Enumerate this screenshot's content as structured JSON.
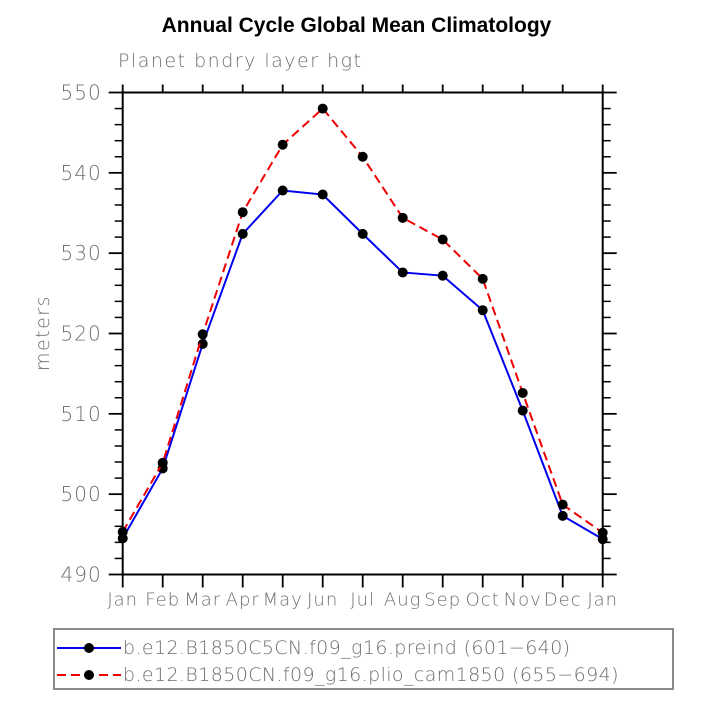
{
  "title": "Annual Cycle Global Mean Climatology",
  "colors": {
    "axis": "#000000",
    "label_gray": "#6e6e6e",
    "series_blue": "#0000ee",
    "series_red": "#ee0000",
    "marker_black": "#000000",
    "legend_border": "#8a8a8a"
  },
  "chart_data": {
    "type": "line",
    "title": "Annual Cycle Global Mean Climatology",
    "subtitle": "Planet bndry layer hgt",
    "xlabel": "",
    "ylabel": "meters",
    "categories": [
      "Jan",
      "Feb",
      "Mar",
      "Apr",
      "May",
      "Jun",
      "Jul",
      "Aug",
      "Sep",
      "Oct",
      "Nov",
      "Dec",
      "Jan"
    ],
    "ylim": [
      490,
      550
    ],
    "yticks": [
      490,
      500,
      510,
      520,
      530,
      540,
      550
    ],
    "y_minor_step": 2,
    "grid": false,
    "legend_position": "bottom",
    "series": [
      {
        "name": "b.e12.B1850C5CN.f09_g16.preind (601−640)",
        "color": "#0000ee",
        "style": "solid",
        "marker": "circle",
        "marker_color": "#000000",
        "values": [
          494.5,
          503.2,
          518.7,
          532.4,
          537.8,
          537.3,
          532.4,
          527.6,
          527.2,
          522.9,
          510.4,
          497.3,
          494.4
        ]
      },
      {
        "name": "b.e12.B1850CN.f09_g16.plio_cam1850 (655−694)",
        "color": "#ee0000",
        "style": "dashed",
        "marker": "circle",
        "marker_color": "#000000",
        "values": [
          495.3,
          503.9,
          519.9,
          535.1,
          543.5,
          548.0,
          542.0,
          534.4,
          531.7,
          526.8,
          512.6,
          498.7,
          495.2
        ]
      }
    ]
  }
}
